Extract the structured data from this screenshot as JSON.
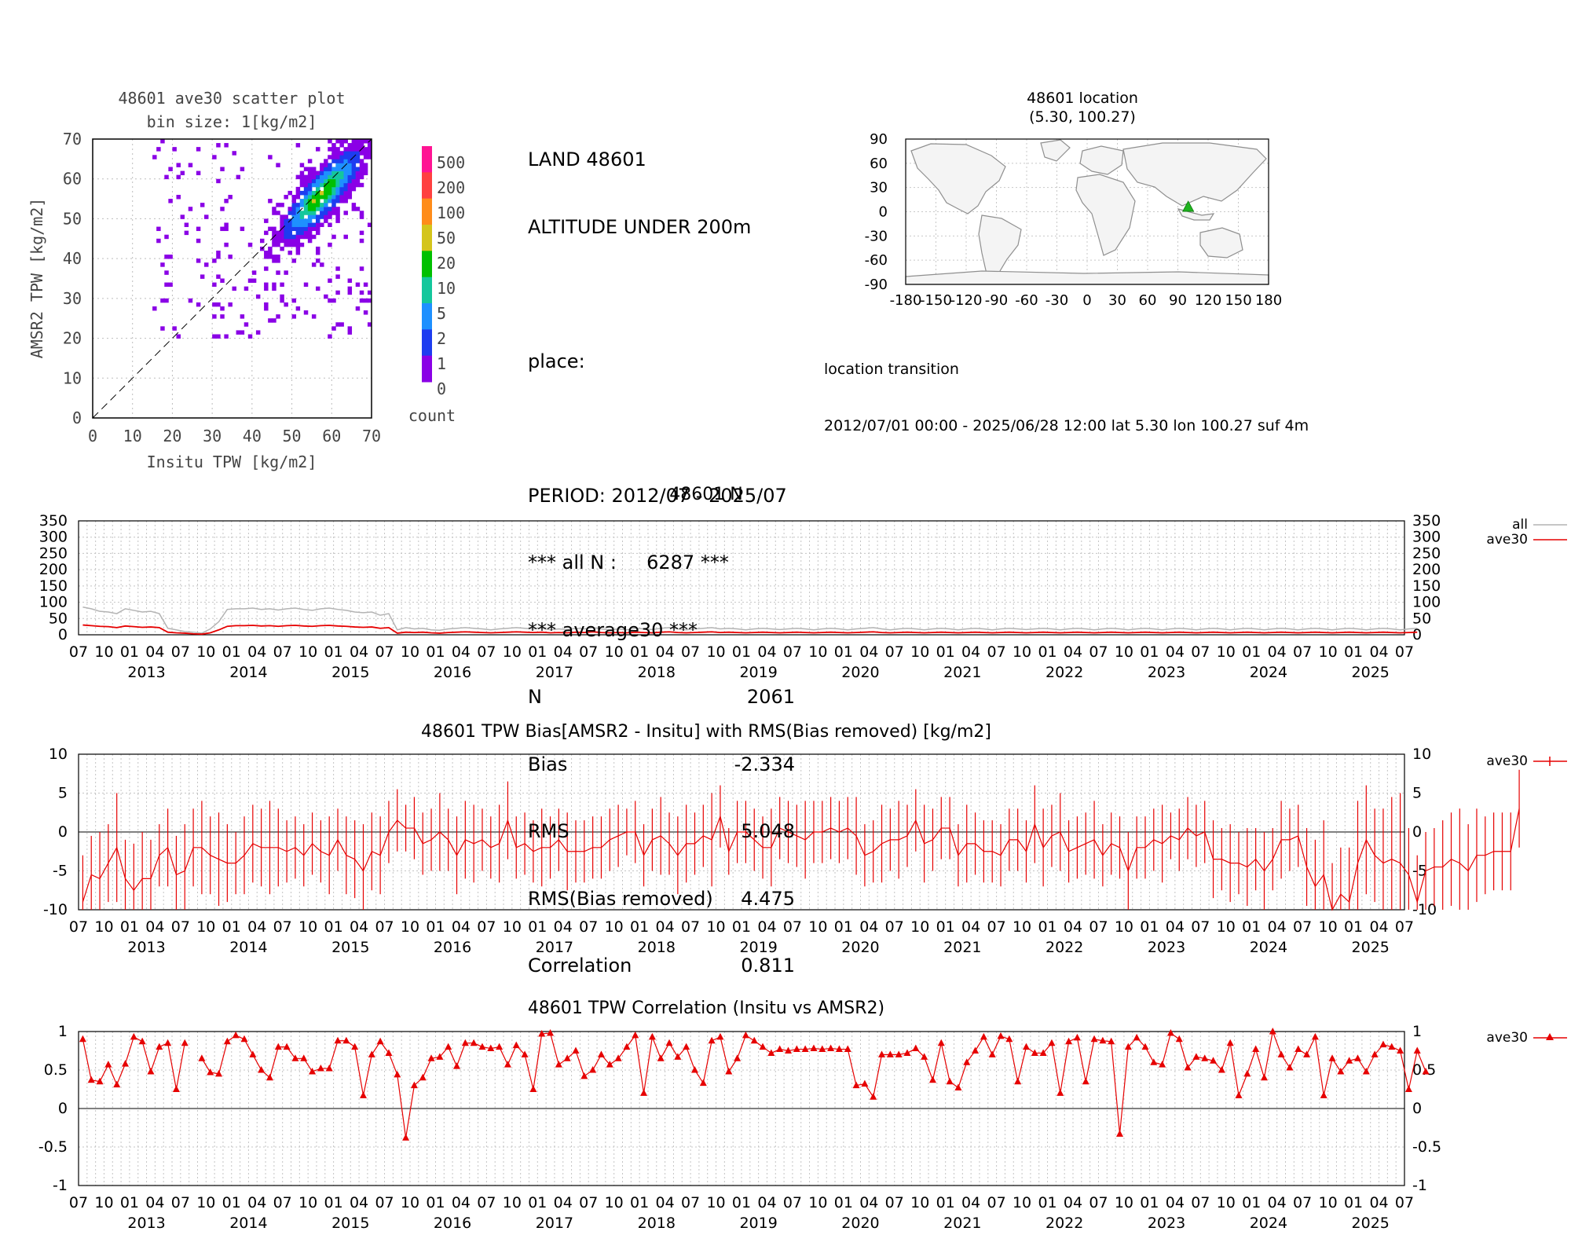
{
  "scatter": {
    "title": "48601 ave30 scatter plot",
    "subtitle": "bin size: 1[kg/m2]",
    "xlabel": "Insitu TPW [kg/m2]",
    "ylabel": "AMSR2 TPW [kg/m2]",
    "ticks": [
      "0",
      "10",
      "20",
      "30",
      "40",
      "50",
      "60",
      "70"
    ],
    "colorbar_label": "count",
    "colorbar_ticks": [
      "500",
      "200",
      "100",
      "50",
      "20",
      "10",
      "5",
      "2",
      "1",
      "0"
    ],
    "colorbar_colors": [
      "#ff1493",
      "#ff4040",
      "#ff8c1a",
      "#d4c51c",
      "#00c000",
      "#14c79c",
      "#1e90ff",
      "#1e3cf0",
      "#8a00e6"
    ]
  },
  "info": {
    "line1": "LAND 48601",
    "line2": "ALTITUDE UNDER 200m",
    "line3": "place:",
    "period": "PERIOD: 2012/07 - 2025/07",
    "all_n": "*** all N :     6287 ***",
    "avg": "*** average30 ***",
    "stats": [
      {
        "label": "N",
        "value": "2061"
      },
      {
        "label": "Bias",
        "value": "-2.334"
      },
      {
        "label": "RMS",
        "value": "5.048"
      },
      {
        "label": "RMS(Bias removed)",
        "value": "4.475"
      },
      {
        "label": "Correlation",
        "value": "0.811"
      }
    ]
  },
  "location": {
    "title": "48601 location",
    "coords": "(5.30, 100.27)",
    "yticks": [
      "90",
      "60",
      "30",
      "0",
      "-30",
      "-60",
      "-90"
    ],
    "xticks": [
      "-180",
      "-150",
      "-120",
      "-90",
      "-60",
      "-30",
      "0",
      "30",
      "60",
      "90",
      "120",
      "150",
      "180"
    ],
    "transition_title": "location transition",
    "transition_line": "2012/07/01 00:00 - 2025/06/28 12:00 lat 5.30 lon 100.27 suf 4m",
    "marker_lat": 5.3,
    "marker_lon": 100.27,
    "marker_color": "#1fb31f"
  },
  "time_axis": {
    "month_labels": [
      "07",
      "10",
      "01",
      "04"
    ],
    "years": [
      "2013",
      "2014",
      "2015",
      "2016",
      "2017",
      "2018",
      "2019",
      "2020",
      "2021",
      "2022",
      "2023",
      "2024",
      "2025"
    ]
  },
  "chart_data": [
    {
      "type": "line",
      "title": "48601 N",
      "ylim": [
        0,
        350
      ],
      "yticks": [
        "350",
        "300",
        "250",
        "200",
        "150",
        "100",
        "50",
        "0"
      ],
      "x_range": [
        "2012-07",
        "2025-07"
      ],
      "series": [
        {
          "name": "all",
          "color": "#b3b3b3",
          "values": [
            85,
            80,
            72,
            70,
            65,
            80,
            75,
            70,
            72,
            65,
            20,
            15,
            10,
            8,
            5,
            18,
            40,
            78,
            80,
            80,
            82,
            78,
            80,
            76,
            80,
            82,
            78,
            75,
            80,
            82,
            78,
            75,
            70,
            68,
            70,
            60,
            65,
            15,
            22,
            18,
            20,
            15,
            14,
            18,
            20,
            22,
            20,
            18,
            15,
            18,
            20,
            22,
            20,
            18,
            20,
            15,
            18,
            16,
            20,
            18,
            22,
            18,
            15,
            18,
            15,
            20,
            18,
            16,
            20,
            22,
            18,
            15,
            18,
            20,
            22,
            18,
            20,
            18,
            15,
            18,
            20,
            18,
            16,
            18,
            20,
            18,
            15,
            18,
            20,
            18,
            15,
            18,
            20,
            22,
            18,
            15,
            18,
            20,
            18,
            15,
            18,
            20,
            18,
            15,
            18,
            20,
            18,
            15,
            18,
            20,
            18,
            16,
            18,
            20,
            18,
            15,
            18,
            20,
            18,
            15,
            18,
            20,
            18,
            15,
            18,
            20,
            18,
            15,
            18,
            20,
            18,
            15,
            18,
            20,
            18,
            15,
            18,
            20,
            18,
            15,
            18,
            20,
            18,
            15,
            18,
            20,
            18,
            15,
            18,
            20,
            18,
            15,
            18,
            20,
            18,
            15,
            18,
            20
          ]
        },
        {
          "name": "ave30",
          "color": "#e60000",
          "values": [
            30,
            28,
            26,
            25,
            22,
            27,
            25,
            23,
            24,
            22,
            8,
            6,
            5,
            3,
            2,
            6,
            15,
            26,
            28,
            28,
            29,
            27,
            28,
            26,
            28,
            29,
            27,
            26,
            28,
            29,
            27,
            26,
            24,
            23,
            24,
            20,
            22,
            5,
            8,
            7,
            8,
            6,
            5,
            7,
            8,
            9,
            8,
            7,
            6,
            7,
            8,
            9,
            8,
            7,
            8,
            6,
            7,
            6,
            8,
            7,
            9,
            7,
            6,
            7,
            6,
            8,
            7,
            6,
            8,
            9,
            7,
            6,
            7,
            8,
            9,
            7,
            8,
            7,
            6,
            7,
            8,
            7,
            6,
            7,
            8,
            7,
            6,
            7,
            8,
            7,
            6,
            7,
            8,
            9,
            7,
            6,
            7,
            8,
            7,
            6,
            7,
            8,
            7,
            6,
            7,
            8,
            7,
            6,
            7,
            8,
            7,
            6,
            7,
            8,
            7,
            6,
            7,
            8,
            7,
            6,
            7,
            8,
            7,
            6,
            7,
            8,
            7,
            6,
            7,
            8,
            7,
            6,
            7,
            8,
            7,
            6,
            7,
            8,
            7,
            6,
            7,
            8,
            7,
            6,
            7,
            8,
            7,
            6,
            7,
            8,
            7,
            6,
            7,
            8,
            7,
            6,
            7,
            8
          ]
        }
      ]
    },
    {
      "type": "line",
      "title": "48601 TPW Bias[AMSR2 - Insitu] with RMS(Bias removed) [kg/m2]",
      "ylim": [
        -10,
        10
      ],
      "yticks": [
        "10",
        "5",
        "0",
        "-5",
        "-10"
      ],
      "x_range": [
        "2012-07",
        "2025-07"
      ],
      "series": [
        {
          "name": "ave30",
          "color": "#e60000",
          "values": [
            -9,
            -5.5,
            -6,
            -4,
            -2,
            -6,
            -7.5,
            -6,
            -6,
            -3,
            -2,
            -5.5,
            -5,
            -2,
            -2,
            -3,
            -3.5,
            -4,
            -4,
            -3,
            -1.5,
            -2,
            -2,
            -2,
            -2.5,
            -2,
            -3,
            -1.5,
            -2.5,
            -3,
            -1,
            -3,
            -3.5,
            -5,
            -2.5,
            -3,
            0,
            1.5,
            0.5,
            0.5,
            -1.5,
            -1,
            0,
            -1,
            -3,
            -1,
            -1.5,
            -1,
            -2,
            -1.5,
            1.5,
            -2,
            -1.5,
            -2.5,
            -2,
            -2,
            -1,
            -2.5,
            -2.5,
            -2.5,
            -2,
            -2,
            -1,
            -0.5,
            0,
            0,
            -3,
            -1,
            -0.5,
            -1.5,
            -3,
            -1.5,
            -1.5,
            -0.5,
            -1,
            2,
            -2.5,
            0,
            0,
            -1,
            -2,
            -2,
            0.5,
            0,
            -0.5,
            -1,
            0,
            0,
            0.5,
            0,
            0.5,
            -0.5,
            -3,
            -2.5,
            -1.5,
            -1,
            -1,
            -0.5,
            1.5,
            -1.5,
            -1,
            0.5,
            0.5,
            -3,
            -1.5,
            -1.5,
            -2.5,
            -2.5,
            -3,
            -1,
            -1,
            -2.5,
            1,
            -2,
            -0.5,
            0,
            -2.5,
            -2,
            -1.5,
            -1,
            -3,
            -1.5,
            -2,
            -5,
            -2,
            -2,
            -1,
            -1.5,
            -0.5,
            -1,
            0.5,
            -0.5,
            0,
            -3.5,
            -3.5,
            -4,
            -4,
            -4.5,
            -3.5,
            -5,
            -3.5,
            -1,
            -1,
            -0.5,
            -4.5,
            -7,
            -5.5,
            -10,
            -8,
            -9,
            -4,
            -1,
            -3,
            -4,
            -3.5,
            -4,
            -5.5,
            -9,
            -5,
            -4.5,
            -4.5,
            -3.5,
            -4,
            -5,
            -3,
            -3,
            -2.5,
            -2.5,
            -2.5,
            3
          ]
        },
        {
          "name": "RMS(Bias removed)",
          "color": "#e60000",
          "values": [
            6,
            5,
            6,
            5,
            7,
            5,
            6,
            6,
            5,
            4,
            5,
            5,
            6,
            5,
            6,
            5,
            6,
            5,
            4,
            5,
            5,
            5,
            6,
            5,
            4,
            4,
            4,
            4,
            4,
            5,
            4,
            5,
            5,
            6,
            5,
            5,
            4,
            4,
            3,
            4,
            4,
            4,
            5,
            4,
            5,
            5,
            5,
            4,
            4,
            5,
            5,
            4,
            4,
            4,
            5,
            4,
            4,
            5,
            4,
            4,
            4,
            4,
            4,
            4,
            3,
            4,
            4,
            4,
            5,
            4,
            5,
            5,
            4,
            4,
            6,
            4,
            3,
            4,
            4,
            4,
            4,
            5,
            4,
            4,
            4,
            5,
            4,
            4,
            4,
            4,
            4,
            5,
            4,
            4,
            5,
            4,
            5,
            4,
            4,
            5,
            4,
            4,
            4,
            4,
            5,
            4,
            4,
            4,
            4,
            4,
            4,
            4,
            5,
            5,
            4,
            5,
            4,
            4,
            4,
            5,
            4,
            4,
            4,
            5,
            4,
            4,
            4,
            5,
            3,
            4,
            4,
            4,
            4,
            5,
            4,
            5,
            4,
            5,
            4,
            5,
            4,
            5,
            4,
            4,
            5,
            6,
            7,
            6,
            6,
            7,
            8,
            7,
            6,
            7,
            8,
            9,
            6,
            6,
            5,
            5,
            6,
            6,
            7,
            6,
            6,
            5,
            5,
            5,
            5,
            5,
            4,
            5,
            4
          ]
        }
      ]
    },
    {
      "type": "line",
      "title": "48601 TPW Correlation (Insitu vs AMSR2)",
      "ylim": [
        -1,
        1
      ],
      "yticks": [
        "1",
        "0.5",
        "0",
        "-0.5",
        "-1"
      ],
      "x_range": [
        "2012-07",
        "2025-07"
      ],
      "series": [
        {
          "name": "ave30",
          "color": "#e60000",
          "values": [
            0.9,
            0.37,
            0.35,
            0.57,
            0.31,
            0.58,
            0.93,
            0.87,
            0.48,
            0.8,
            0.85,
            0.25,
            0.85,
            null,
            0.65,
            0.47,
            0.45,
            0.87,
            0.95,
            0.9,
            0.7,
            0.5,
            0.4,
            0.8,
            0.8,
            0.65,
            0.65,
            0.48,
            0.52,
            0.52,
            0.88,
            0.88,
            0.8,
            0.17,
            0.7,
            0.87,
            0.72,
            0.44,
            -0.38,
            0.3,
            0.4,
            0.65,
            0.67,
            0.8,
            0.55,
            0.85,
            0.85,
            0.8,
            0.78,
            0.8,
            0.57,
            0.82,
            0.7,
            0.25,
            0.97,
            0.98,
            0.57,
            0.65,
            0.75,
            0.42,
            0.5,
            0.7,
            0.57,
            0.65,
            0.8,
            0.95,
            0.2,
            0.93,
            0.65,
            0.85,
            0.67,
            0.8,
            0.5,
            0.33,
            0.88,
            0.93,
            0.48,
            0.65,
            0.95,
            0.88,
            0.8,
            0.72,
            0.77,
            0.75,
            0.77,
            0.77,
            0.78,
            0.77,
            0.78,
            0.77,
            0.77,
            0.3,
            0.32,
            0.15,
            0.7,
            0.7,
            0.7,
            0.72,
            0.78,
            0.67,
            0.37,
            0.85,
            0.35,
            0.27,
            0.6,
            0.75,
            0.93,
            0.7,
            0.94,
            0.9,
            0.35,
            0.8,
            0.72,
            0.72,
            0.85,
            0.2,
            0.87,
            0.92,
            0.35,
            0.9,
            0.88,
            0.87,
            -0.33,
            0.8,
            0.92,
            0.8,
            0.6,
            0.57,
            0.98,
            0.9,
            0.53,
            0.67,
            0.65,
            0.62,
            0.5,
            0.85,
            0.17,
            0.45,
            0.77,
            0.4,
            1.0,
            0.7,
            0.53,
            0.77,
            0.7,
            0.93,
            0.17,
            0.65,
            0.48,
            0.62,
            0.65,
            0.48,
            0.7,
            0.83,
            0.8,
            0.75,
            0.25,
            0.75,
            0.48
          ]
        }
      ]
    }
  ]
}
